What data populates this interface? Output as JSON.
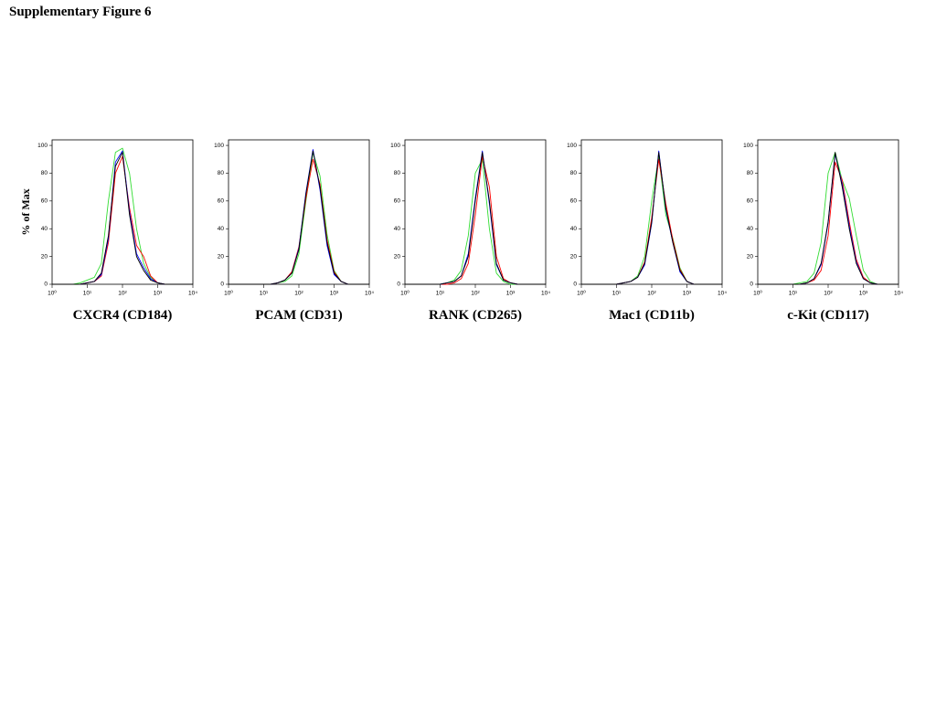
{
  "title": "Supplementary Figure 6",
  "chart_data": [
    {
      "type": "line",
      "xlabel": "CXCR4 (CD184)",
      "ylabel": "% of Max",
      "xscale": "log",
      "xlim": [
        1,
        10000
      ],
      "ylim": [
        0,
        104
      ],
      "xticks": [
        {
          "value": 1,
          "label": "10⁰"
        },
        {
          "value": 10,
          "label": "10¹"
        },
        {
          "value": 100,
          "label": "10²"
        },
        {
          "value": 1000,
          "label": "10³"
        },
        {
          "value": 10000,
          "label": "10⁴"
        }
      ],
      "yticks": [
        0,
        20,
        40,
        60,
        80,
        100
      ],
      "x": [
        1,
        1.585,
        2.512,
        3.981,
        6.31,
        10,
        15.85,
        25.12,
        39.81,
        63.1,
        100,
        158.5,
        251.2,
        398.1,
        631,
        1000,
        1585,
        2512,
        3981,
        6310,
        10000
      ],
      "series": [
        {
          "color": "#33dd33",
          "values": [
            0,
            0,
            0,
            0,
            1,
            3,
            5,
            15,
            60,
            95,
            98,
            80,
            40,
            15,
            5,
            1,
            0,
            0,
            0,
            0,
            0
          ]
        },
        {
          "color": "#ff0000",
          "values": [
            0,
            0,
            0,
            0,
            0,
            1,
            2,
            6,
            30,
            80,
            92,
            55,
            28,
            20,
            6,
            1,
            0,
            0,
            0,
            0,
            0
          ]
        },
        {
          "color": "#0000ff",
          "values": [
            0,
            0,
            0,
            0,
            0,
            1,
            2,
            7,
            33,
            88,
            96,
            52,
            22,
            12,
            4,
            1,
            0,
            0,
            0,
            0,
            0
          ]
        },
        {
          "color": "#000000",
          "values": [
            0,
            0,
            0,
            0,
            0,
            1,
            2,
            8,
            35,
            85,
            95,
            50,
            20,
            10,
            3,
            1,
            0,
            0,
            0,
            0,
            0
          ]
        }
      ]
    },
    {
      "type": "line",
      "xlabel": "PCAM (CD31)",
      "xscale": "log",
      "xlim": [
        1,
        10000
      ],
      "ylim": [
        0,
        104
      ],
      "xticks": [
        {
          "value": 1,
          "label": "10⁰"
        },
        {
          "value": 10,
          "label": "10¹"
        },
        {
          "value": 100,
          "label": "10²"
        },
        {
          "value": 1000,
          "label": "10³"
        },
        {
          "value": 10000,
          "label": "10⁴"
        }
      ],
      "yticks": [
        0,
        20,
        40,
        60,
        80,
        100
      ],
      "x": [
        1,
        1.585,
        2.512,
        3.981,
        6.31,
        10,
        15.85,
        25.12,
        39.81,
        63.1,
        100,
        158.5,
        251.2,
        398.1,
        631,
        1000,
        1585,
        2512,
        3981,
        6310,
        10000
      ],
      "series": [
        {
          "color": "#33dd33",
          "values": [
            0,
            0,
            0,
            0,
            0,
            0,
            0,
            1,
            2,
            6,
            22,
            60,
            95,
            78,
            36,
            10,
            2,
            0,
            0,
            0,
            0
          ]
        },
        {
          "color": "#ff0000",
          "values": [
            0,
            0,
            0,
            0,
            0,
            0,
            0,
            1,
            3,
            9,
            27,
            62,
            90,
            72,
            32,
            9,
            2,
            0,
            0,
            0,
            0
          ]
        },
        {
          "color": "#0000ff",
          "values": [
            0,
            0,
            0,
            0,
            0,
            0,
            0,
            1,
            3,
            8,
            26,
            66,
            97,
            68,
            28,
            7,
            2,
            0,
            0,
            0,
            0
          ]
        },
        {
          "color": "#000000",
          "values": [
            0,
            0,
            0,
            0,
            0,
            0,
            0,
            1,
            3,
            8,
            25,
            65,
            96,
            70,
            30,
            8,
            2,
            0,
            0,
            0,
            0
          ]
        }
      ]
    },
    {
      "type": "line",
      "xlabel": "RANK (CD265)",
      "xscale": "log",
      "xlim": [
        1,
        10000
      ],
      "ylim": [
        0,
        104
      ],
      "xticks": [
        {
          "value": 1,
          "label": "10⁰"
        },
        {
          "value": 10,
          "label": "10¹"
        },
        {
          "value": 100,
          "label": "10²"
        },
        {
          "value": 1000,
          "label": "10³"
        },
        {
          "value": 10000,
          "label": "10⁴"
        }
      ],
      "yticks": [
        0,
        20,
        40,
        60,
        80,
        100
      ],
      "x": [
        1,
        1.585,
        2.512,
        3.981,
        6.31,
        10,
        15.85,
        25.12,
        39.81,
        63.1,
        100,
        158.5,
        251.2,
        398.1,
        631,
        1000,
        1585,
        2512,
        3981,
        6310,
        10000
      ],
      "series": [
        {
          "color": "#33dd33",
          "values": [
            0,
            0,
            0,
            0,
            0,
            0,
            1,
            3,
            10,
            35,
            80,
            90,
            40,
            8,
            2,
            0,
            0,
            0,
            0,
            0,
            0
          ]
        },
        {
          "color": "#ff0000",
          "values": [
            0,
            0,
            0,
            0,
            0,
            0,
            0,
            1,
            4,
            15,
            50,
            92,
            70,
            20,
            4,
            1,
            0,
            0,
            0,
            0,
            0
          ]
        },
        {
          "color": "#0000ff",
          "values": [
            0,
            0,
            0,
            0,
            0,
            0,
            1,
            2,
            6,
            22,
            62,
            96,
            58,
            14,
            3,
            1,
            0,
            0,
            0,
            0,
            0
          ]
        },
        {
          "color": "#000000",
          "values": [
            0,
            0,
            0,
            0,
            0,
            0,
            1,
            2,
            6,
            20,
            60,
            95,
            60,
            15,
            3,
            1,
            0,
            0,
            0,
            0,
            0
          ]
        }
      ]
    },
    {
      "type": "line",
      "xlabel": "Mac1 (CD11b)",
      "xscale": "log",
      "xlim": [
        1,
        10000
      ],
      "ylim": [
        0,
        104
      ],
      "xticks": [
        {
          "value": 1,
          "label": "10⁰"
        },
        {
          "value": 10,
          "label": "10¹"
        },
        {
          "value": 100,
          "label": "10²"
        },
        {
          "value": 1000,
          "label": "10³"
        },
        {
          "value": 10000,
          "label": "10⁴"
        }
      ],
      "yticks": [
        0,
        20,
        40,
        60,
        80,
        100
      ],
      "x": [
        1,
        1.585,
        2.512,
        3.981,
        6.31,
        10,
        15.85,
        25.12,
        39.81,
        63.1,
        100,
        158.5,
        251.2,
        398.1,
        631,
        1000,
        1585,
        2512,
        3981,
        6310,
        10000
      ],
      "series": [
        {
          "color": "#33dd33",
          "values": [
            0,
            0,
            0,
            0,
            0,
            0,
            1,
            2,
            6,
            20,
            60,
            92,
            50,
            33,
            12,
            2,
            0,
            0,
            0,
            0,
            0
          ]
        },
        {
          "color": "#ff0000",
          "values": [
            0,
            0,
            0,
            0,
            0,
            0,
            1,
            2,
            5,
            16,
            48,
            90,
            58,
            32,
            11,
            2,
            0,
            0,
            0,
            0,
            0
          ]
        },
        {
          "color": "#0000ff",
          "values": [
            0,
            0,
            0,
            0,
            0,
            0,
            1,
            2,
            5,
            14,
            44,
            96,
            54,
            30,
            9,
            2,
            0,
            0,
            0,
            0,
            0
          ]
        },
        {
          "color": "#000000",
          "values": [
            0,
            0,
            0,
            0,
            0,
            0,
            1,
            2,
            5,
            15,
            45,
            95,
            55,
            30,
            10,
            2,
            0,
            0,
            0,
            0,
            0
          ]
        }
      ]
    },
    {
      "type": "line",
      "xlabel": "c-Kit (CD117)",
      "xscale": "log",
      "xlim": [
        1,
        10000
      ],
      "ylim": [
        0,
        104
      ],
      "xticks": [
        {
          "value": 1,
          "label": "10⁰"
        },
        {
          "value": 10,
          "label": "10¹"
        },
        {
          "value": 100,
          "label": "10²"
        },
        {
          "value": 1000,
          "label": "10³"
        },
        {
          "value": 10000,
          "label": "10⁴"
        }
      ],
      "yticks": [
        0,
        20,
        40,
        60,
        80,
        100
      ],
      "x": [
        1,
        1.585,
        2.512,
        3.981,
        6.31,
        10,
        15.85,
        25.12,
        39.81,
        63.1,
        100,
        158.5,
        251.2,
        398.1,
        631,
        1000,
        1585,
        2512,
        3981,
        6310,
        10000
      ],
      "series": [
        {
          "color": "#33dd33",
          "values": [
            0,
            0,
            0,
            0,
            0,
            0,
            1,
            2,
            8,
            30,
            80,
            95,
            75,
            62,
            35,
            10,
            2,
            0,
            0,
            0,
            0
          ]
        },
        {
          "color": "#ff0000",
          "values": [
            0,
            0,
            0,
            0,
            0,
            0,
            0,
            1,
            3,
            10,
            35,
            88,
            75,
            45,
            18,
            5,
            1,
            0,
            0,
            0,
            0
          ]
        },
        {
          "color": "#0000ff",
          "values": [
            0,
            0,
            0,
            0,
            0,
            0,
            0,
            1,
            4,
            14,
            44,
            94,
            72,
            42,
            16,
            4,
            1,
            0,
            0,
            0,
            0
          ]
        },
        {
          "color": "#000000",
          "values": [
            0,
            0,
            0,
            0,
            0,
            0,
            0,
            1,
            4,
            15,
            45,
            95,
            70,
            40,
            15,
            4,
            1,
            0,
            0,
            0,
            0
          ]
        }
      ]
    }
  ]
}
